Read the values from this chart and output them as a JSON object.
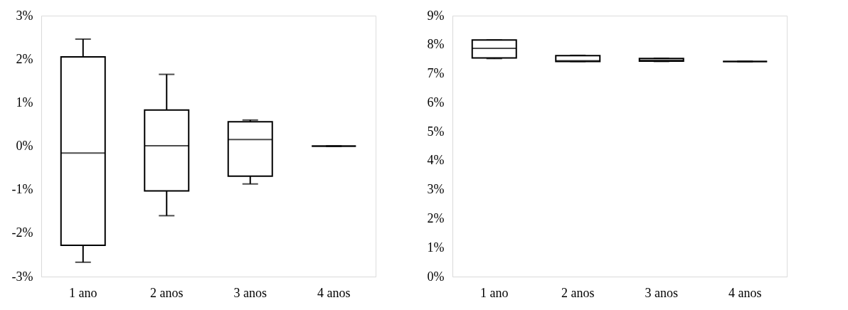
{
  "chart_data": [
    {
      "type": "box",
      "categories": [
        "1 ano",
        "2 anos",
        "3 anos",
        "4 anos"
      ],
      "boxes": [
        {
          "low": -2.67,
          "q1": -2.28,
          "median": -0.16,
          "q3": 2.05,
          "high": 2.46
        },
        {
          "low": -1.6,
          "q1": -1.03,
          "median": 0.01,
          "q3": 0.83,
          "high": 1.65
        },
        {
          "low": -0.87,
          "q1": -0.69,
          "median": 0.15,
          "q3": 0.56,
          "high": 0.6
        },
        {
          "low": 0.0,
          "q1": 0.0,
          "median": 0.0,
          "q3": 0.0,
          "high": 0.0
        }
      ],
      "color": "#000000",
      "ylim": [
        -3,
        3
      ],
      "yticks": [
        {
          "value": -3,
          "label": "-3%"
        },
        {
          "value": -2,
          "label": "-2%"
        },
        {
          "value": -1,
          "label": "-1%"
        },
        {
          "value": 0,
          "label": "0%"
        },
        {
          "value": 1,
          "label": "1%"
        },
        {
          "value": 2,
          "label": "2%"
        },
        {
          "value": 3,
          "label": "3%"
        }
      ],
      "grid": false
    },
    {
      "type": "box",
      "categories": [
        "1 ano",
        "2 anos",
        "3 anos",
        "4 anos"
      ],
      "boxes": [
        {
          "low": 7.52,
          "q1": 7.54,
          "median": 7.87,
          "q3": 8.16,
          "high": 8.16
        },
        {
          "low": 7.42,
          "q1": 7.42,
          "median": 7.44,
          "q3": 7.62,
          "high": 7.63
        },
        {
          "low": 7.42,
          "q1": 7.43,
          "median": 7.46,
          "q3": 7.52,
          "high": 7.53
        },
        {
          "low": 7.42,
          "q1": 7.42,
          "median": 7.42,
          "q3": 7.42,
          "high": 7.42
        }
      ],
      "color": "#000000",
      "ylim": [
        0,
        9
      ],
      "yticks": [
        {
          "value": 0,
          "label": "0%"
        },
        {
          "value": 1,
          "label": "1%"
        },
        {
          "value": 2,
          "label": "2%"
        },
        {
          "value": 3,
          "label": "3%"
        },
        {
          "value": 4,
          "label": "4%"
        },
        {
          "value": 5,
          "label": "5%"
        },
        {
          "value": 6,
          "label": "6%"
        },
        {
          "value": 7,
          "label": "7%"
        },
        {
          "value": 8,
          "label": "8%"
        },
        {
          "value": 9,
          "label": "9%"
        }
      ],
      "grid": false
    }
  ]
}
